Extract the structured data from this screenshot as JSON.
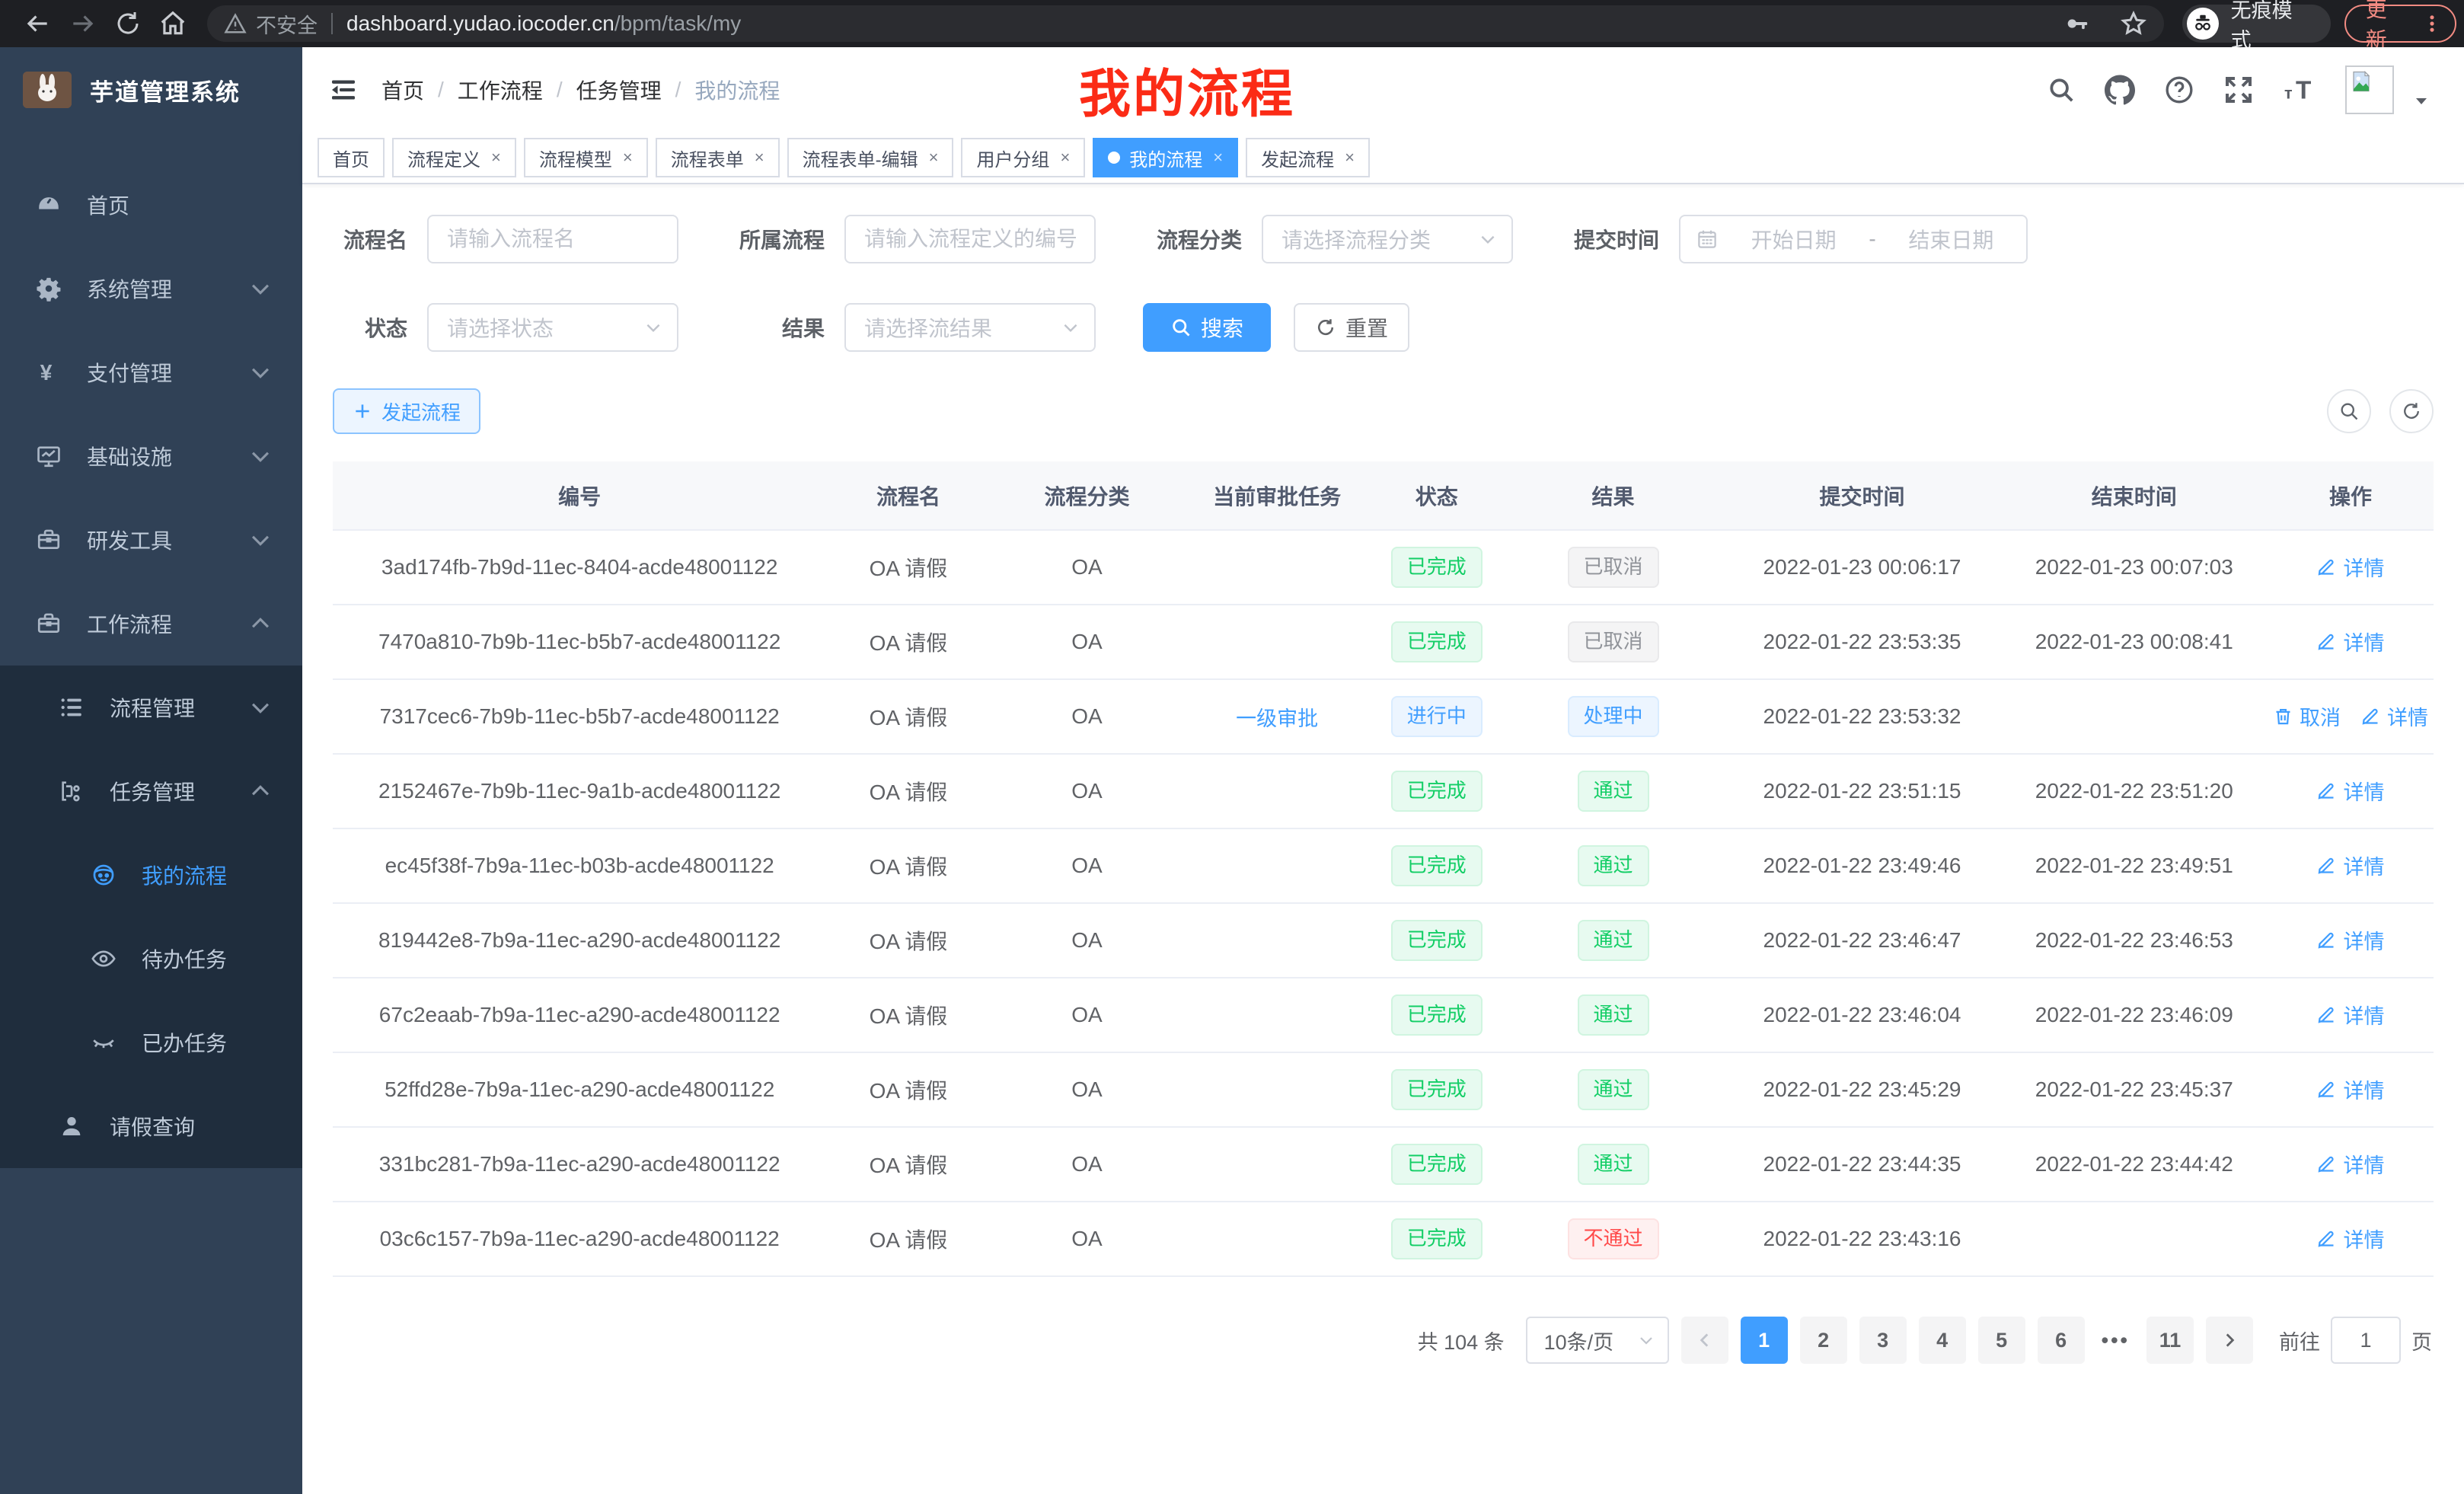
{
  "colors": {
    "accent": "#409eff",
    "success": "#13ce66",
    "danger": "#ff4949",
    "info": "#909399",
    "annotation_red": "#fb2b16",
    "sidebar_bg": "#304156",
    "submenu_bg": "#1f2d3d"
  },
  "browser": {
    "security_warning": "不安全",
    "url_host": "dashboard.yudao.iocoder.cn",
    "url_path": "/bpm/task/my",
    "incognito_label": "无痕模式",
    "update_button": "更新"
  },
  "sidebar": {
    "logo_title": "芋道管理系统",
    "items": [
      {
        "label": "首页",
        "icon": "dashboard-icon",
        "level": 1,
        "submenu": false,
        "chevron": "",
        "active": false
      },
      {
        "label": "系统管理",
        "icon": "gear-icon",
        "level": 1,
        "submenu": false,
        "chevron": "down",
        "active": false
      },
      {
        "label": "支付管理",
        "icon": "yen-icon",
        "level": 1,
        "submenu": false,
        "chevron": "down",
        "active": false
      },
      {
        "label": "基础设施",
        "icon": "monitor-icon",
        "level": 1,
        "submenu": false,
        "chevron": "down",
        "active": false
      },
      {
        "label": "研发工具",
        "icon": "toolbox-icon",
        "level": 1,
        "submenu": false,
        "chevron": "down",
        "active": false
      },
      {
        "label": "工作流程",
        "icon": "toolbox-icon",
        "level": 1,
        "submenu": false,
        "chevron": "up",
        "active": false
      },
      {
        "label": "流程管理",
        "icon": "list-icon",
        "level": 2,
        "submenu": true,
        "chevron": "down",
        "active": false
      },
      {
        "label": "任务管理",
        "icon": "share-icon",
        "level": 2,
        "submenu": true,
        "chevron": "up",
        "active": false
      },
      {
        "label": "我的流程",
        "icon": "face-icon",
        "level": 3,
        "submenu": true,
        "chevron": "",
        "active": true
      },
      {
        "label": "待办任务",
        "icon": "eye-icon",
        "level": 3,
        "submenu": true,
        "chevron": "",
        "active": false
      },
      {
        "label": "已办任务",
        "icon": "eye-off-icon",
        "level": 3,
        "submenu": true,
        "chevron": "",
        "active": false
      },
      {
        "label": "请假查询",
        "icon": "user-icon",
        "level": 2,
        "submenu": true,
        "chevron": "",
        "active": false
      }
    ]
  },
  "header": {
    "breadcrumb": [
      "首页",
      "工作流程",
      "任务管理",
      "我的流程"
    ],
    "annotation": "我的流程",
    "icons": [
      "search-icon",
      "github-icon",
      "help-icon",
      "fullscreen-icon",
      "font-size-icon",
      "avatar-broken-image",
      "caret-down-icon"
    ]
  },
  "tabs": [
    {
      "label": "首页",
      "closable": false,
      "active": false
    },
    {
      "label": "流程定义",
      "closable": true,
      "active": false
    },
    {
      "label": "流程模型",
      "closable": true,
      "active": false
    },
    {
      "label": "流程表单",
      "closable": true,
      "active": false
    },
    {
      "label": "流程表单-编辑",
      "closable": true,
      "active": false
    },
    {
      "label": "用户分组",
      "closable": true,
      "active": false
    },
    {
      "label": "我的流程",
      "closable": true,
      "active": true
    },
    {
      "label": "发起流程",
      "closable": true,
      "active": false
    }
  ],
  "filters": {
    "name_label": "流程名",
    "name_placeholder": "请输入流程名",
    "process_label": "所属流程",
    "process_placeholder": "请输入流程定义的编号",
    "category_label": "流程分类",
    "category_placeholder": "请选择流程分类",
    "time_label": "提交时间",
    "start_placeholder": "开始日期",
    "range_separator": "-",
    "end_placeholder": "结束日期",
    "status_label": "状态",
    "status_placeholder": "请选择状态",
    "result_label": "结果",
    "result_placeholder": "请选择流结果",
    "search_button": "搜索",
    "reset_button": "重置"
  },
  "toolbar": {
    "create_button": "发起流程"
  },
  "table": {
    "columns": [
      "编号",
      "流程名",
      "流程分类",
      "当前审批任务",
      "状态",
      "结果",
      "提交时间",
      "结束时间",
      "操作"
    ],
    "rows": [
      {
        "id": "3ad174fb-7b9d-11ec-8404-acde48001122",
        "name": "OA 请假",
        "category": "OA",
        "task": "",
        "status": "已完成",
        "status_type": "success",
        "result": "已取消",
        "result_type": "info",
        "submit_time": "2022-01-23 00:06:17",
        "end_time": "2022-01-23 00:07:03",
        "actions": [
          {
            "type": "detail",
            "label": "详情"
          }
        ]
      },
      {
        "id": "7470a810-7b9b-11ec-b5b7-acde48001122",
        "name": "OA 请假",
        "category": "OA",
        "task": "",
        "status": "已完成",
        "status_type": "success",
        "result": "已取消",
        "result_type": "info",
        "submit_time": "2022-01-22 23:53:35",
        "end_time": "2022-01-23 00:08:41",
        "actions": [
          {
            "type": "detail",
            "label": "详情"
          }
        ]
      },
      {
        "id": "7317cec6-7b9b-11ec-b5b7-acde48001122",
        "name": "OA 请假",
        "category": "OA",
        "task": "一级审批",
        "status": "进行中",
        "status_type": "primary",
        "result": "处理中",
        "result_type": "primary",
        "submit_time": "2022-01-22 23:53:32",
        "end_time": "",
        "actions": [
          {
            "type": "cancel",
            "label": "取消"
          },
          {
            "type": "detail",
            "label": "详情"
          }
        ]
      },
      {
        "id": "2152467e-7b9b-11ec-9a1b-acde48001122",
        "name": "OA 请假",
        "category": "OA",
        "task": "",
        "status": "已完成",
        "status_type": "success",
        "result": "通过",
        "result_type": "success",
        "submit_time": "2022-01-22 23:51:15",
        "end_time": "2022-01-22 23:51:20",
        "actions": [
          {
            "type": "detail",
            "label": "详情"
          }
        ]
      },
      {
        "id": "ec45f38f-7b9a-11ec-b03b-acde48001122",
        "name": "OA 请假",
        "category": "OA",
        "task": "",
        "status": "已完成",
        "status_type": "success",
        "result": "通过",
        "result_type": "success",
        "submit_time": "2022-01-22 23:49:46",
        "end_time": "2022-01-22 23:49:51",
        "actions": [
          {
            "type": "detail",
            "label": "详情"
          }
        ]
      },
      {
        "id": "819442e8-7b9a-11ec-a290-acde48001122",
        "name": "OA 请假",
        "category": "OA",
        "task": "",
        "status": "已完成",
        "status_type": "success",
        "result": "通过",
        "result_type": "success",
        "submit_time": "2022-01-22 23:46:47",
        "end_time": "2022-01-22 23:46:53",
        "actions": [
          {
            "type": "detail",
            "label": "详情"
          }
        ]
      },
      {
        "id": "67c2eaab-7b9a-11ec-a290-acde48001122",
        "name": "OA 请假",
        "category": "OA",
        "task": "",
        "status": "已完成",
        "status_type": "success",
        "result": "通过",
        "result_type": "success",
        "submit_time": "2022-01-22 23:46:04",
        "end_time": "2022-01-22 23:46:09",
        "actions": [
          {
            "type": "detail",
            "label": "详情"
          }
        ]
      },
      {
        "id": "52ffd28e-7b9a-11ec-a290-acde48001122",
        "name": "OA 请假",
        "category": "OA",
        "task": "",
        "status": "已完成",
        "status_type": "success",
        "result": "通过",
        "result_type": "success",
        "submit_time": "2022-01-22 23:45:29",
        "end_time": "2022-01-22 23:45:37",
        "actions": [
          {
            "type": "detail",
            "label": "详情"
          }
        ]
      },
      {
        "id": "331bc281-7b9a-11ec-a290-acde48001122",
        "name": "OA 请假",
        "category": "OA",
        "task": "",
        "status": "已完成",
        "status_type": "success",
        "result": "通过",
        "result_type": "success",
        "submit_time": "2022-01-22 23:44:35",
        "end_time": "2022-01-22 23:44:42",
        "actions": [
          {
            "type": "detail",
            "label": "详情"
          }
        ]
      },
      {
        "id": "03c6c157-7b9a-11ec-a290-acde48001122",
        "name": "OA 请假",
        "category": "OA",
        "task": "",
        "status": "已完成",
        "status_type": "success",
        "result": "不通过",
        "result_type": "danger",
        "submit_time": "2022-01-22 23:43:16",
        "end_time": "",
        "actions": [
          {
            "type": "detail",
            "label": "详情"
          }
        ]
      }
    ]
  },
  "pagination": {
    "total": "共 104 条",
    "page_size": "10条/页",
    "pages": [
      "1",
      "2",
      "3",
      "4",
      "5",
      "6",
      "...",
      "11"
    ],
    "active_page": "1",
    "goto_label": "前往",
    "goto_value": "1",
    "goto_suffix": "页"
  }
}
